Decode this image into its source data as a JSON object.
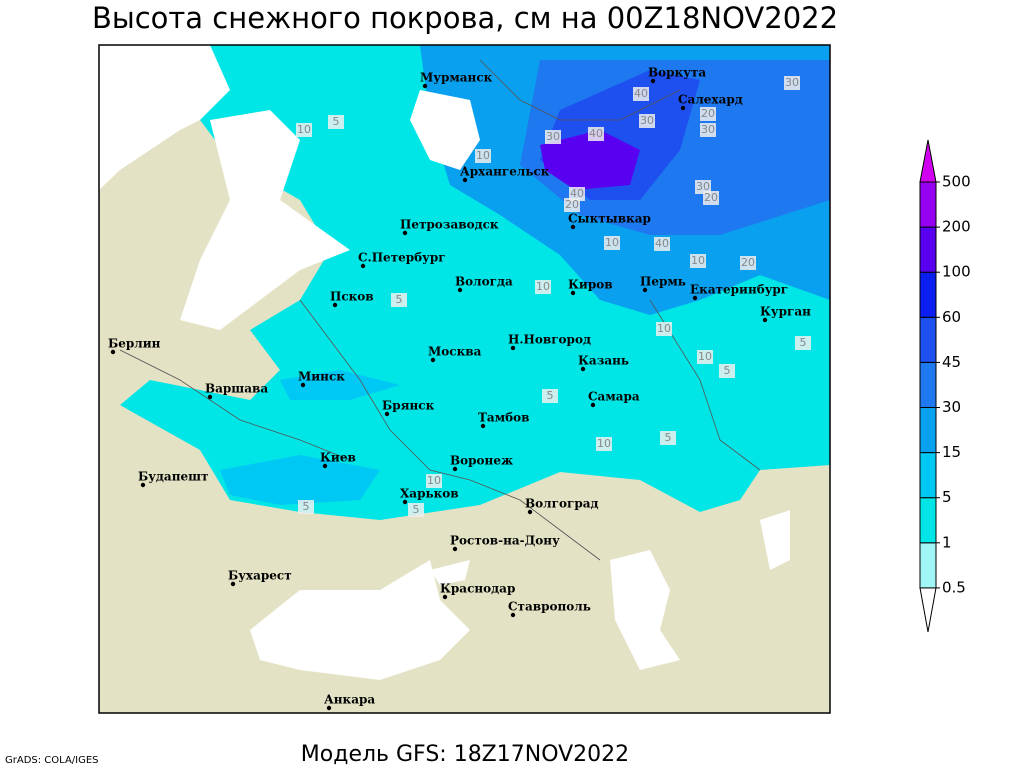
{
  "title": "Высота снежного покрова, см на 00Z18NOV2022",
  "footer": {
    "model": "Модель GFS: 18Z17NOV2022",
    "credit": "GrADS: COLA/IGES"
  },
  "cities": [
    "Мурманск",
    "Воркута",
    "Салехард",
    "Архангельск",
    "Сыктывкар",
    "Петрозаводск",
    "С.Петербург",
    "Вологда",
    "Киров",
    "Пермь",
    "Екатеринбург",
    "Курган",
    "Псков",
    "Берлин",
    "Н.Новгород",
    "Москва",
    "Казань",
    "Минск",
    "Варшава",
    "Брянск",
    "Самара",
    "Тамбов",
    "Воронеж",
    "Киев",
    "Будапешт",
    "Харьков",
    "Волгоград",
    "Ростов-на-Дону",
    "Бухарест",
    "Краснодар",
    "Ставрополь",
    "Анкара"
  ],
  "contour_labels": [
    10,
    5,
    10,
    40,
    30,
    40,
    20,
    30,
    30,
    40,
    20,
    30,
    30,
    20,
    10,
    40,
    10,
    20,
    5,
    10,
    10,
    5,
    5,
    10,
    10,
    5,
    5,
    10,
    5,
    5
  ],
  "legend": {
    "levels": [
      0.5,
      1,
      5,
      15,
      30,
      45,
      60,
      100,
      200,
      500
    ],
    "colors": [
      "#ffffff",
      "#a0f5f5",
      "#00e6e6",
      "#00c8f5",
      "#0aa0f0",
      "#1e78f0",
      "#1e50f0",
      "#0a1ef0",
      "#5a00f0",
      "#9600f0",
      "#d200f0"
    ]
  }
}
